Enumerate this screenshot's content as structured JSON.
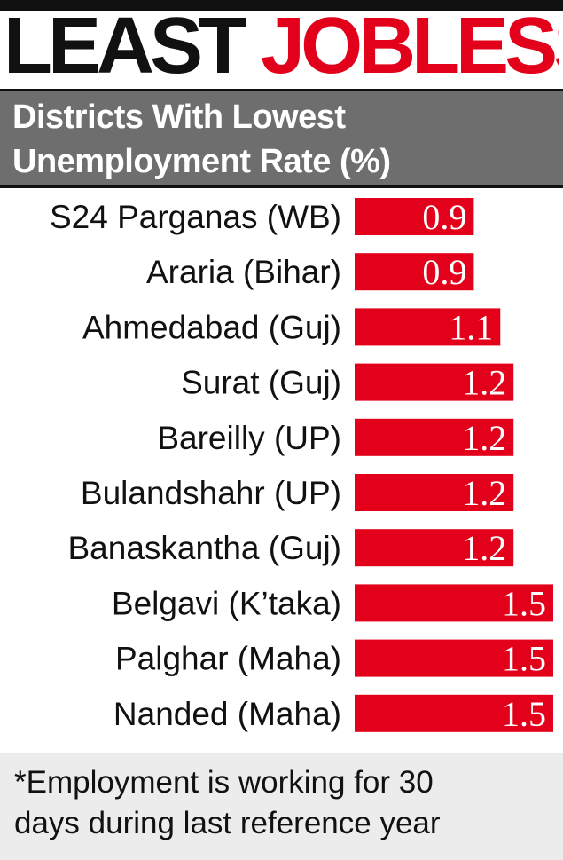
{
  "headline": {
    "word1": "LEAST",
    "word2": "JOBLESS"
  },
  "subtitle": {
    "line1": "Districts With Lowest",
    "line2": "Unemployment Rate (%)"
  },
  "footnote": {
    "line1": "*Employment is working for 30",
    "line2": "days during last reference year"
  },
  "colors": {
    "bar": "#e3001b",
    "accent": "#e3001b",
    "header_bg": "#6e6e6e",
    "footnote_bg": "#ececec",
    "text": "#111111"
  },
  "chart_data": {
    "type": "bar",
    "orientation": "horizontal",
    "title": "Districts With Lowest Unemployment Rate (%)",
    "categories": [
      "S24 Parganas (WB)",
      "Araria (Bihar)",
      "Ahmedabad (Guj)",
      "Surat (Guj)",
      "Bareilly (UP)",
      "Bulandshahr (UP)",
      "Banaskantha (Guj)",
      "Belgavi (K’taka)",
      "Palghar (Maha)",
      "Nanded (Maha)"
    ],
    "values": [
      0.9,
      0.9,
      1.1,
      1.2,
      1.2,
      1.2,
      1.2,
      1.5,
      1.5,
      1.5
    ],
    "value_labels": [
      "0.9",
      "0.9",
      "1.1",
      "1.2",
      "1.2",
      "1.2",
      "1.2",
      "1.5",
      "1.5",
      "1.5"
    ],
    "xlim": [
      0,
      1.5
    ],
    "grid": false,
    "legend": "none"
  }
}
